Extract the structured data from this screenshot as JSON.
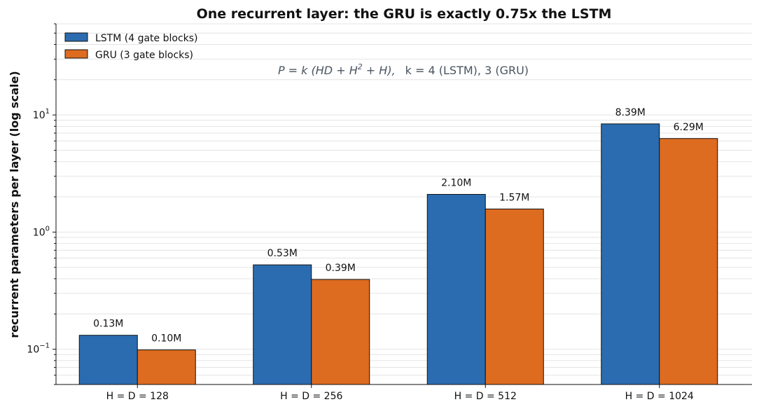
{
  "chart_data": {
    "type": "bar",
    "title": "One recurrent layer: the GRU is exactly 0.75x the LSTM",
    "ylabel": "recurrent parameters per layer (log scale)",
    "xlabel": "",
    "yscale": "log",
    "ylim": [
      0.05,
      60
    ],
    "grid": "y (major and minor)",
    "legend_position": "top-left",
    "categories": [
      "H = D = 128",
      "H = D = 256",
      "H = D = 512",
      "H = D = 1024"
    ],
    "series": [
      {
        "name": "LSTM (4 gate blocks)",
        "color": "#2b6cb0",
        "values": [
          0.131584,
          0.525312,
          2.0992,
          8.392704
        ],
        "labels": [
          "0.13M",
          "0.53M",
          "2.10M",
          "8.39M"
        ]
      },
      {
        "name": "GRU (3 gate blocks)",
        "color": "#dd6b20",
        "values": [
          0.098688,
          0.393984,
          1.5744,
          6.294528
        ],
        "labels": [
          "0.10M",
          "0.39M",
          "1.57M",
          "6.29M"
        ]
      }
    ],
    "ytick_labels": [
      {
        "value": 0.1,
        "base": "10",
        "exp": "−1"
      },
      {
        "value": 1,
        "base": "10",
        "exp": "0"
      },
      {
        "value": 10,
        "base": "10",
        "exp": "1"
      }
    ],
    "annotation": {
      "formula_main": "P = k (HD + H",
      "formula_sup": "2",
      "formula_rest": " + H),",
      "formula_k": "k = 4 (LSTM), 3 (GRU)"
    }
  }
}
